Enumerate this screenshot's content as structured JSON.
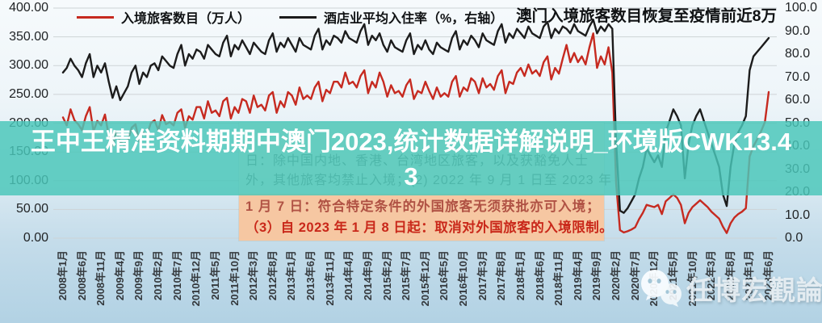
{
  "chart_data": {
    "type": "line",
    "title": "澳门入境旅客数目恢复至疫情前近8万",
    "x_start": "2008-01",
    "x_end": "2023-06",
    "x_frequency": "monthly",
    "x_tick_labels": [
      "2008年1月",
      "2008年6月",
      "2008年11月",
      "2009年4月",
      "2009年9月",
      "2010年2月",
      "2010年7月",
      "2010年12月",
      "2011年5月",
      "2011年10月",
      "2012年3月",
      "2012年8月",
      "2013年1月",
      "2013年6月",
      "2013年11月",
      "2014年4月",
      "2014年9月",
      "2015年2月",
      "2015年7月",
      "2015年12月",
      "2016年5月",
      "2016年10月",
      "2017年3月",
      "2017年8月",
      "2018年1月",
      "2018年6月",
      "2018年11月",
      "2019年4月",
      "2019年9月",
      "2020年2月",
      "2020年7月",
      "2020年12月",
      "2021年5月",
      "2021年10月",
      "2022年3月",
      "2022年8月",
      "2023年1月",
      "2023年6月"
    ],
    "x_tick_every_n_months": 5,
    "left_axis": {
      "range": [
        0,
        400
      ],
      "tick_step": 50,
      "tick_labels": [
        "400.00",
        "350.00",
        "300.00",
        "250.00",
        "200.00",
        "150.00",
        "100.00",
        "50.00",
        "0.00"
      ]
    },
    "right_axis": {
      "range": [
        0,
        100
      ],
      "tick_step": 10,
      "tick_labels": [
        "100.0",
        "90.0",
        "80.0",
        "70.0",
        "60.0",
        "50.0",
        "40.0",
        "30.0",
        "20.0",
        "10.0",
        "0.0"
      ]
    },
    "grid": true,
    "legend_position": "top",
    "series": [
      {
        "name": "入境旅客数目（万人）",
        "axis": "left",
        "color": "#c62a20",
        "values": [
          210,
          196,
          224,
          205,
          198,
          188,
          212,
          228,
          186,
          204,
          196,
          215,
          178,
          160,
          186,
          168,
          162,
          170,
          192,
          198,
          168,
          184,
          178,
          200,
          205,
          188,
          214,
          198,
          202,
          196,
          218,
          224,
          192,
          212,
          206,
          228,
          228,
          208,
          238,
          218,
          222,
          212,
          238,
          244,
          208,
          228,
          218,
          242,
          238,
          218,
          248,
          228,
          232,
          222,
          248,
          254,
          218,
          238,
          228,
          254,
          248,
          232,
          262,
          242,
          248,
          242,
          262,
          272,
          238,
          258,
          252,
          272,
          272,
          262,
          288,
          268,
          272,
          262,
          282,
          292,
          252,
          272,
          262,
          288,
          272,
          246,
          266,
          252,
          256,
          246,
          266,
          276,
          242,
          256,
          252,
          272,
          256,
          242,
          262,
          246,
          252,
          246,
          272,
          282,
          246,
          262,
          256,
          278,
          272,
          252,
          278,
          262,
          268,
          258,
          282,
          292,
          252,
          272,
          268,
          288,
          296,
          282,
          302,
          286,
          292,
          282,
          306,
          316,
          276,
          296,
          286,
          312,
          336,
          306,
          322,
          306,
          316,
          302,
          332,
          356,
          296,
          316,
          302,
          332,
          288,
          96,
          14,
          10,
          12,
          15,
          19,
          33,
          44,
          58,
          56,
          54,
          58,
          42,
          64,
          70,
          76,
          70,
          58,
          26,
          44,
          54,
          60,
          66,
          60,
          54,
          46,
          40,
          34,
          20,
          9,
          26,
          36,
          42,
          46,
          52,
          142,
          160,
          172,
          186,
          202,
          254
        ]
      },
      {
        "name": "酒店业平均入住率（%，右轴）",
        "axis": "right",
        "color": "#1c1c1c",
        "values": [
          72,
          74,
          78,
          75,
          73,
          70,
          76,
          80,
          70,
          75,
          72,
          76,
          68,
          61,
          66,
          60,
          63,
          66,
          72,
          75,
          67,
          72,
          70,
          75,
          76,
          73,
          79,
          77,
          75,
          74,
          80,
          84,
          75,
          80,
          78,
          82,
          81,
          78,
          84,
          82,
          80,
          79,
          85,
          88,
          79,
          84,
          82,
          86,
          83,
          80,
          85,
          83,
          81,
          80,
          86,
          89,
          81,
          85,
          83,
          87,
          84,
          81,
          87,
          84,
          83,
          82,
          88,
          91,
          82,
          86,
          84,
          88,
          87,
          85,
          90,
          87,
          86,
          85,
          90,
          93,
          84,
          88,
          86,
          89,
          84,
          81,
          86,
          83,
          82,
          81,
          86,
          89,
          80,
          84,
          82,
          86,
          82,
          80,
          85,
          83,
          82,
          81,
          87,
          90,
          82,
          86,
          84,
          88,
          86,
          83,
          89,
          86,
          85,
          84,
          90,
          93,
          85,
          89,
          87,
          91,
          89,
          87,
          92,
          89,
          88,
          87,
          92,
          94,
          87,
          91,
          89,
          92,
          91,
          89,
          93,
          90,
          89,
          88,
          92,
          95,
          89,
          92,
          90,
          93,
          91,
          42,
          12,
          11,
          13,
          16,
          19,
          26,
          31,
          39,
          36,
          33,
          36,
          31,
          46,
          51,
          56,
          53,
          49,
          26,
          41,
          49,
          53,
          56,
          51,
          46,
          41,
          36,
          31,
          19,
          14,
          31,
          41,
          46,
          49,
          53,
          73,
          79,
          81,
          83,
          85,
          87
        ]
      }
    ]
  },
  "overlay": {
    "line1": "王中王精准资料期期中澳门2023,统计数据详解说明_环境版CWK13.4",
    "line2": "3",
    "band_color": "#49c7b9",
    "text_color": "#ffffff"
  },
  "annotation": {
    "line1": "日：除中国内地、香港、台湾地区旅客，以及获豁免人士",
    "line2": "外，其他旅客均禁止入境；(2) 2022 年 9 月 1 日至 2023 年",
    "line3": "1 月 7 日：符合特定条件的外国旅客无须获批亦可入境；",
    "line4": "（3）自 2023 年 1 月 8 日起：取消对外国旅客的入境限制。",
    "top_bg": "#e9eadf",
    "bottom_bg": "#f6c7a2",
    "gray_text": "#686d61",
    "red_text": "#c9281a"
  },
  "watermark": {
    "text": "任博宏觀論道",
    "icon": "wechat-icon"
  }
}
